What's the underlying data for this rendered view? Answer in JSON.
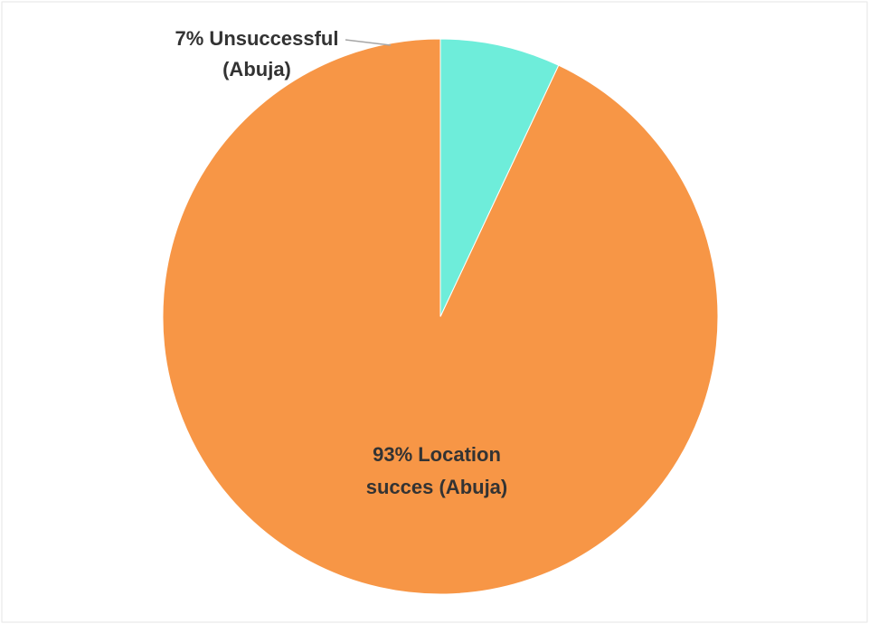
{
  "chart_data": {
    "type": "pie",
    "title": "",
    "start_angle_deg": 0,
    "direction": "counterclockwise",
    "slices": [
      {
        "label_lines": [
          "93% Location",
          "succes (Abuja)"
        ],
        "value": 93,
        "color": "#F79646"
      },
      {
        "label_lines": [
          "7% Unsuccessful",
          "(Abuja)"
        ],
        "value": 7,
        "color": "#6EEDDA"
      }
    ],
    "legend": "none"
  }
}
